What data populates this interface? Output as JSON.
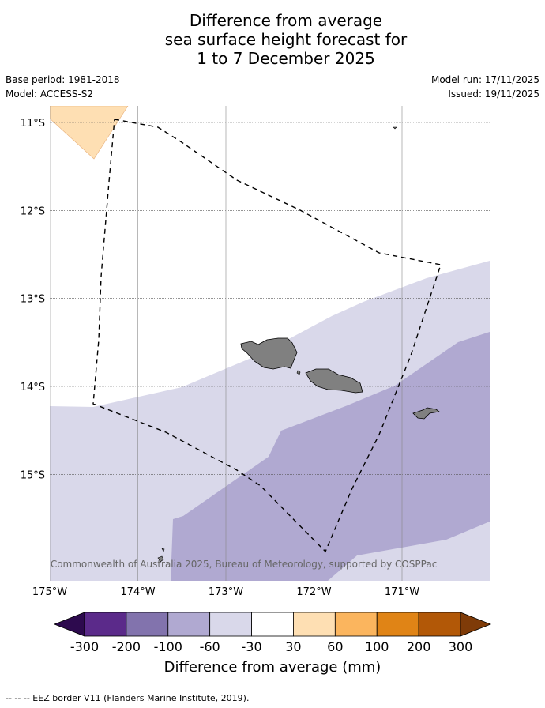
{
  "title": {
    "line1": "Difference from average",
    "line2": "sea surface height forecast for",
    "line3": "1 to 7 December 2025"
  },
  "meta": {
    "base_period": "Base period: 1981-2018",
    "model": "Model: ACCESS-S2",
    "model_run": "Model run: 17/11/2025",
    "issued": "Issued: 19/11/2025"
  },
  "map": {
    "lon_range": [
      -175.0,
      -170.0
    ],
    "lat_range": [
      -16.2,
      -10.8
    ],
    "lat_ticks": [
      {
        "value": -11,
        "label": "11°S"
      },
      {
        "value": -12,
        "label": "12°S"
      },
      {
        "value": -13,
        "label": "13°S"
      },
      {
        "value": -14,
        "label": "14°S"
      },
      {
        "value": -15,
        "label": "15°S"
      }
    ],
    "lon_ticks": [
      {
        "value": -175,
        "label": "175°W"
      },
      {
        "value": -174,
        "label": "174°W"
      },
      {
        "value": -173,
        "label": "173°W"
      },
      {
        "value": -172,
        "label": "172°W"
      },
      {
        "value": -171,
        "label": "171°W"
      }
    ],
    "ocean_color": "#ffffff",
    "land_color": "#808080",
    "copyright": "© Commonwealth of Australia 2025, Bureau of Meteorology, supported by COSPPac",
    "eez_border": "EEZ border V11"
  },
  "colorbar": {
    "ticks": [
      "-300",
      "-200",
      "-100",
      "-60",
      "-30",
      "30",
      "60",
      "100",
      "200",
      "300"
    ],
    "colors": [
      "#2d0a4e",
      "#5b2a8a",
      "#8273ad",
      "#b0a9d1",
      "#d9d8ea",
      "#ffffff",
      "#fedfb3",
      "#fbb55e",
      "#e08416",
      "#b25807",
      "#7f3b08"
    ],
    "label": "Difference from average (mm)"
  },
  "footnote": "--  --  -- EEZ border V11 (Flanders Marine Institute, 2019)."
}
